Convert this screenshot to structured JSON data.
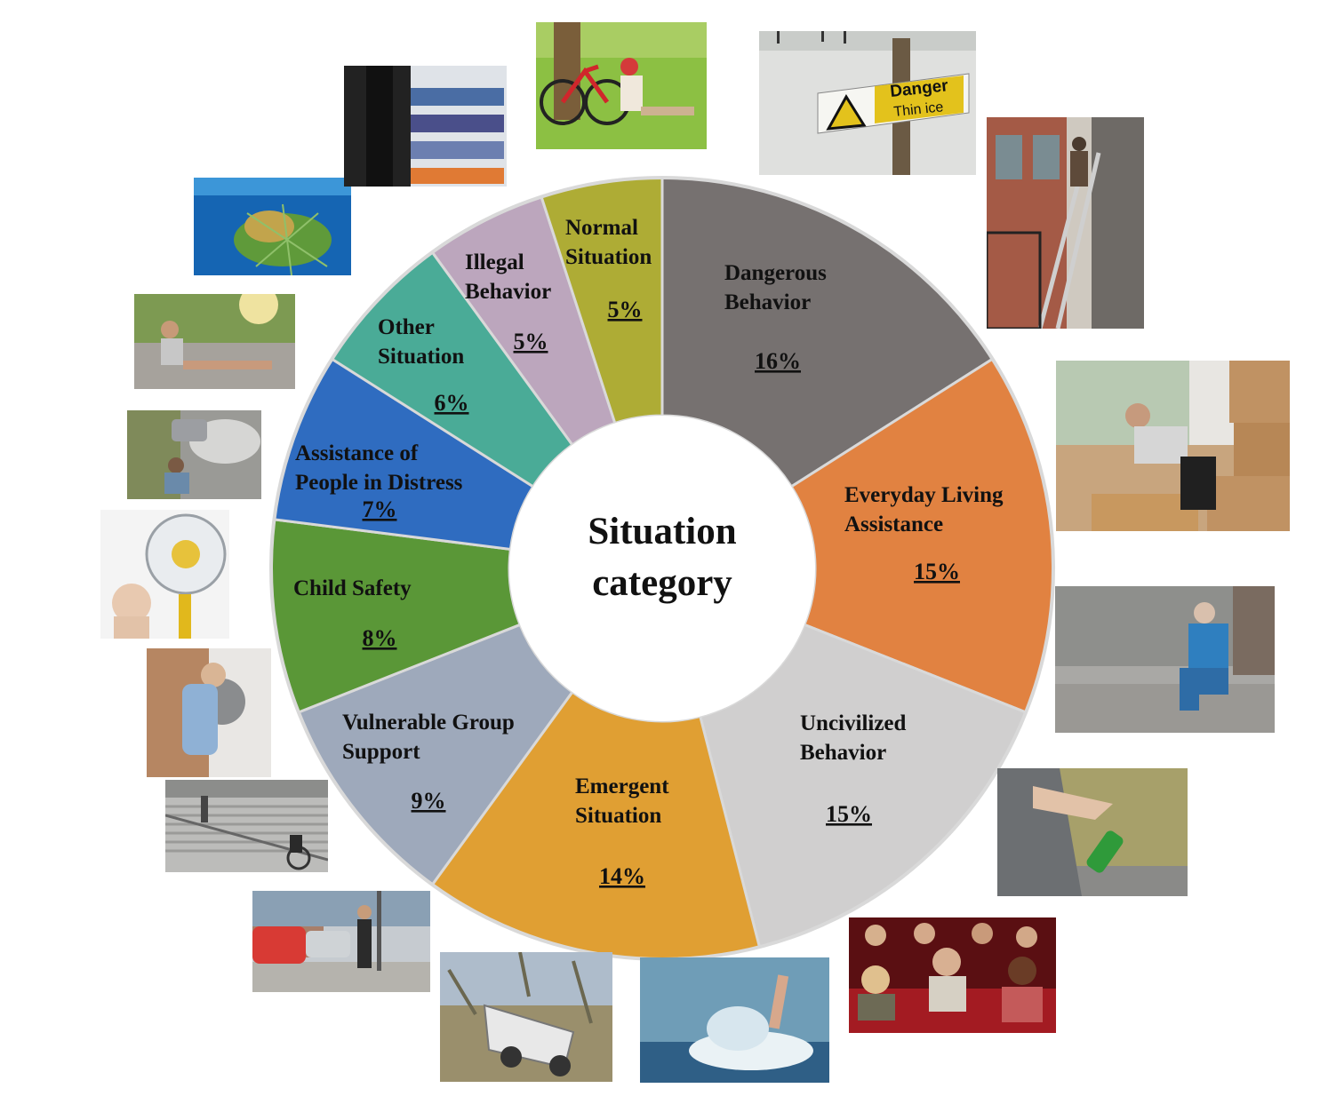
{
  "chart_data": {
    "type": "pie",
    "variant": "donut",
    "center_label": [
      "Situation",
      "category"
    ],
    "series": [
      {
        "category": [
          "Dangerous",
          "Behavior"
        ],
        "value": 16,
        "label": "16%",
        "color": "#767170"
      },
      {
        "category": [
          "Everyday Living",
          "Assistance"
        ],
        "value": 15,
        "label": "15%",
        "color": "#e18241"
      },
      {
        "category": [
          "Uncivilized",
          "Behavior"
        ],
        "value": 15,
        "label": "15%",
        "color": "#d0cfcf"
      },
      {
        "category": [
          "Emergent",
          "Situation"
        ],
        "value": 14,
        "label": "14%",
        "color": "#e09f33"
      },
      {
        "category": [
          "Vulnerable Group",
          "Support"
        ],
        "value": 9,
        "label": "9%",
        "color": "#9ea9bb"
      },
      {
        "category": [
          "Child Safety"
        ],
        "value": 8,
        "label": "8%",
        "color": "#5a9737"
      },
      {
        "category": [
          "Assistance of",
          "People in Distress"
        ],
        "value": 7,
        "label": "7%",
        "color": "#2f6cc0"
      },
      {
        "category": [
          "Other",
          "Situation"
        ],
        "value": 6,
        "label": "6%",
        "color": "#4aab97"
      },
      {
        "category": [
          "Illegal",
          "Behavior"
        ],
        "value": 5,
        "label": "5%",
        "color": "#bca6bd"
      },
      {
        "category": [
          "Normal",
          "Situation"
        ],
        "value": 5,
        "label": "5%",
        "color": "#aeac35"
      }
    ],
    "ring_border_color": "#d9d9d9",
    "start_angle": "12 o'clock",
    "direction": "clockwise"
  },
  "photos": [
    {
      "name": "photo-danger-sign",
      "sign_text": [
        "Danger",
        "Thin ice"
      ]
    },
    {
      "name": "photo-ladder-climber"
    },
    {
      "name": "photo-back-pain-boxes"
    },
    {
      "name": "photo-elderly-knee-pain"
    },
    {
      "name": "photo-bottle-from-car"
    },
    {
      "name": "photo-cinema-audience"
    },
    {
      "name": "photo-drowning-hand"
    },
    {
      "name": "photo-overturned-car"
    },
    {
      "name": "photo-blind-pedestrian"
    },
    {
      "name": "photo-wheelchair-stairs"
    },
    {
      "name": "photo-child-washing-machine"
    },
    {
      "name": "photo-baby-fan"
    },
    {
      "name": "photo-woman-broken-car"
    },
    {
      "name": "photo-injured-runner"
    },
    {
      "name": "photo-turtle-net"
    },
    {
      "name": "photo-shoplifting"
    },
    {
      "name": "photo-girl-reading-bike"
    }
  ]
}
